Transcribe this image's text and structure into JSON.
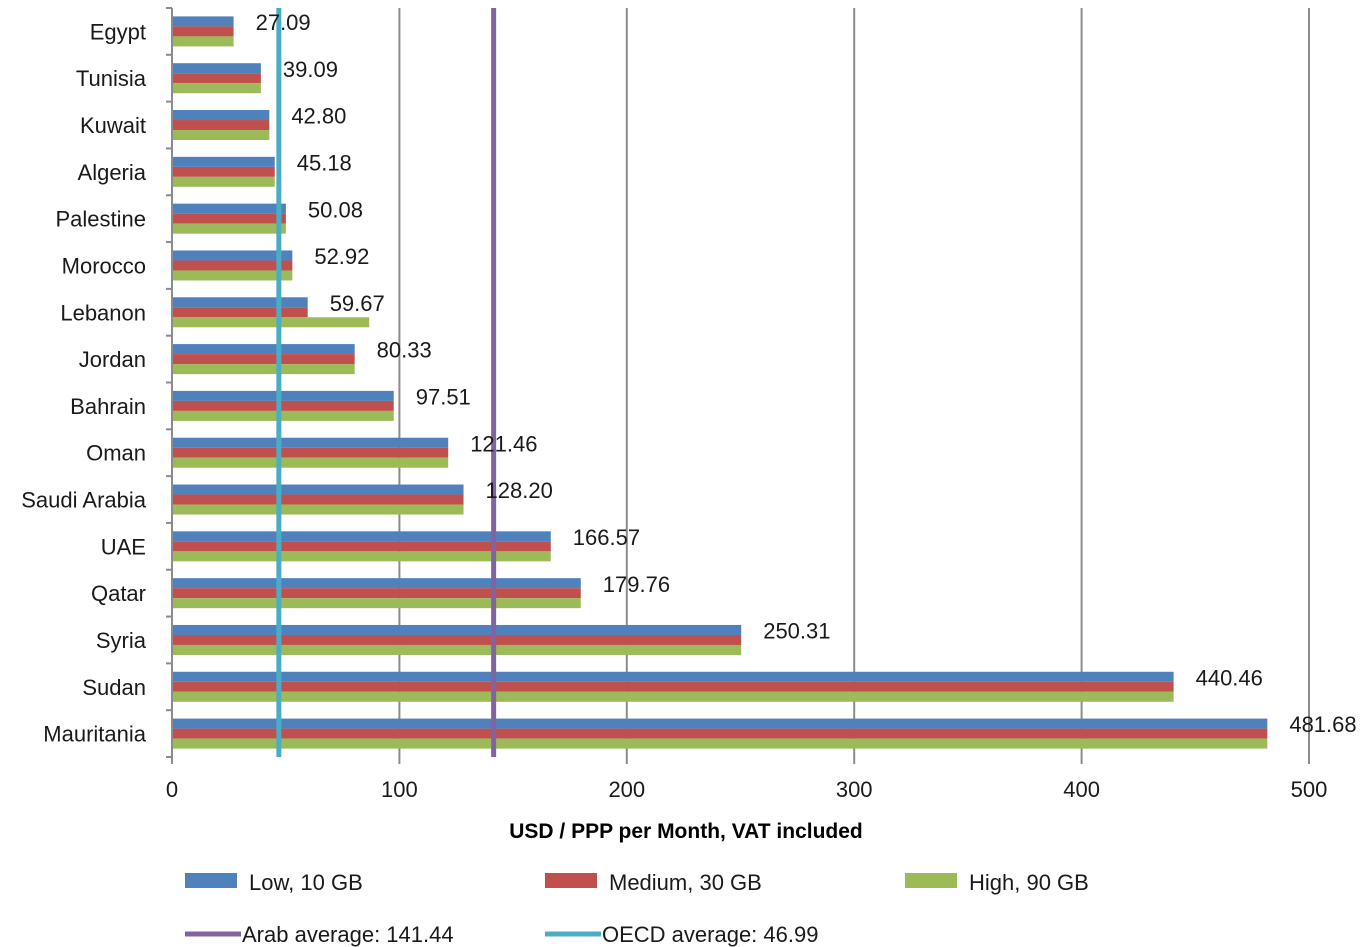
{
  "chart_data": {
    "type": "bar",
    "orientation": "horizontal",
    "categories": [
      "Egypt",
      "Tunisia",
      "Kuwait",
      "Algeria",
      "Palestine",
      "Morocco",
      "Lebanon",
      "Jordan",
      "Bahrain",
      "Oman",
      "Saudi Arabia",
      "UAE",
      "Qatar",
      "Syria",
      "Sudan",
      "Mauritania"
    ],
    "series": [
      {
        "name": "Low, 10 GB",
        "color": "#4f81bd",
        "values": [
          27.09,
          39.09,
          42.8,
          45.18,
          50.08,
          52.92,
          59.67,
          80.33,
          97.51,
          121.46,
          128.2,
          166.57,
          179.76,
          250.31,
          440.46,
          481.68
        ]
      },
      {
        "name": "Medium, 30 GB",
        "color": "#c0504d",
        "values": [
          27.09,
          39.09,
          42.8,
          45.18,
          50.08,
          52.92,
          59.67,
          80.33,
          97.51,
          121.46,
          128.2,
          166.57,
          179.76,
          250.31,
          440.46,
          481.68
        ]
      },
      {
        "name": "High, 90 GB",
        "color": "#9bbb59",
        "values": [
          27.09,
          39.09,
          42.8,
          45.18,
          50.08,
          52.92,
          86.72,
          80.33,
          97.51,
          121.46,
          128.2,
          166.57,
          179.76,
          250.31,
          440.46,
          481.68
        ]
      }
    ],
    "data_labels": [
      "27.09",
      "39.09",
      "42.80",
      "45.18",
      "50.08",
      "52.92",
      "59.67",
      "80.33",
      "97.51",
      "121.46",
      "128.20",
      "166.57",
      "179.76",
      "250.31",
      "440.46",
      "481.68"
    ],
    "reference_lines": [
      {
        "name": "Arab average: 141.44",
        "value": 141.44,
        "color": "#8064a2"
      },
      {
        "name": "OECD average: 46.99",
        "value": 46.99,
        "color": "#4bacc6"
      }
    ],
    "xlabel": "USD / PPP per Month, VAT included",
    "ylabel": "",
    "xlim": [
      0,
      500
    ],
    "xticks": [
      0,
      100,
      200,
      300,
      400,
      500
    ],
    "grid": "vertical",
    "legend": "bottom"
  }
}
